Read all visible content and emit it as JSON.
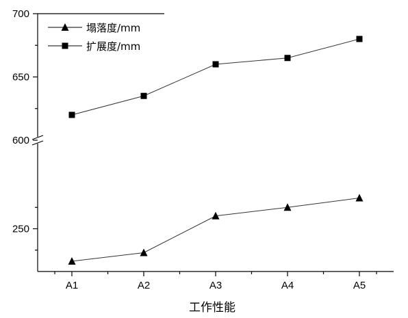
{
  "chart_data": {
    "type": "line",
    "categories": [
      "A1",
      "A2",
      "A3",
      "A4",
      "A5"
    ],
    "xlabel": "工作性能",
    "ylabel": "",
    "axis_break": true,
    "upper_ylim": [
      600,
      700
    ],
    "upper_yticks": [
      "600",
      "650",
      "700"
    ],
    "lower_ylim": [
      200,
      300
    ],
    "lower_yticks": [
      "250"
    ],
    "legend_placement": "top-left",
    "series": [
      {
        "name": "塌落度/mm",
        "marker": "triangle",
        "panel": "lower",
        "values": [
          212,
          222,
          265,
          275,
          286
        ]
      },
      {
        "name": "扩展度/mm",
        "marker": "square",
        "panel": "upper",
        "values": [
          620,
          635,
          660,
          665,
          680
        ]
      }
    ]
  }
}
